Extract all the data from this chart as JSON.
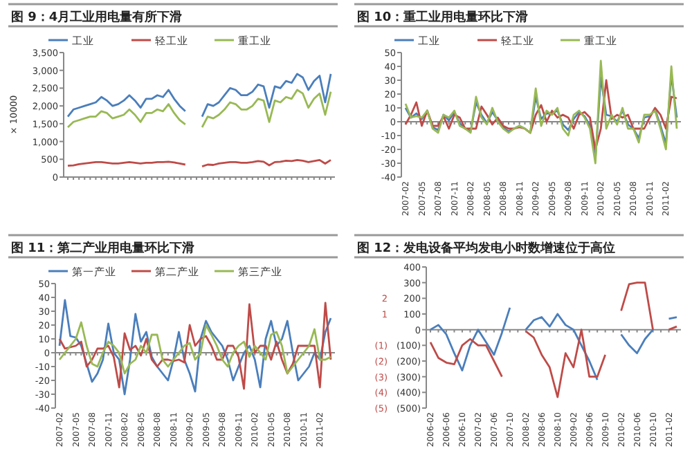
{
  "chart_data": [
    {
      "type": "line",
      "title": "图 9：4月工业用电量有所下滑",
      "ylabel": "× 10000",
      "legend": "top",
      "categories": [
        null,
        null,
        null,
        null,
        null,
        null,
        null,
        null,
        null,
        null,
        null,
        null,
        null,
        null,
        null,
        null,
        null,
        null,
        null,
        null,
        null,
        null,
        null,
        null,
        null,
        null,
        null,
        null,
        null,
        null,
        null,
        null,
        null,
        null,
        null,
        null,
        null,
        null,
        null,
        null,
        null,
        null,
        null,
        null,
        null,
        null,
        null,
        null
      ],
      "ylim": [
        0,
        3500
      ],
      "yticks": [
        0,
        {
          "value": 500,
          "label": "500"
        },
        {
          "value": 1000,
          "label": "1,000"
        },
        {
          "value": 1500,
          "label": "1,500"
        },
        {
          "value": 2000,
          "label": "2,000"
        },
        {
          "value": 2500,
          "label": "2,500"
        },
        {
          "value": 3000,
          "label": "3,000"
        },
        {
          "value": 3500,
          "label": "3,500"
        }
      ],
      "series": [
        {
          "name": "工业",
          "color": "#4a7ebb",
          "values": [
            1700,
            1900,
            1950,
            2000,
            2050,
            2100,
            2250,
            2150,
            2000,
            2050,
            2150,
            2300,
            2150,
            1950,
            2200,
            2200,
            2300,
            2250,
            2450,
            2200,
            2000,
            1850,
            null,
            null,
            1700,
            2050,
            2000,
            2100,
            2300,
            2500,
            2450,
            2300,
            2300,
            2400,
            2600,
            2550,
            1950,
            2550,
            2500,
            2700,
            2650,
            2900,
            2800,
            2450,
            2700,
            2850,
            2100,
            2900
          ]
        },
        {
          "name": "轻工业",
          "color": "#be4b48",
          "values": [
            320,
            330,
            360,
            380,
            400,
            420,
            420,
            400,
            380,
            380,
            400,
            420,
            400,
            380,
            400,
            400,
            420,
            420,
            430,
            410,
            380,
            350,
            null,
            null,
            300,
            350,
            340,
            380,
            400,
            420,
            420,
            400,
            400,
            420,
            450,
            430,
            330,
            420,
            430,
            460,
            450,
            480,
            460,
            420,
            450,
            480,
            380,
            480
          ]
        },
        {
          "name": "重工业",
          "color": "#98b954",
          "values": [
            1400,
            1550,
            1600,
            1650,
            1700,
            1700,
            1850,
            1800,
            1650,
            1700,
            1750,
            1900,
            1750,
            1550,
            1800,
            1800,
            1900,
            1850,
            2050,
            1800,
            1600,
            1480,
            null,
            null,
            1400,
            1700,
            1650,
            1750,
            1900,
            2100,
            2050,
            1900,
            1900,
            2000,
            2200,
            2150,
            1550,
            2150,
            2100,
            2250,
            2200,
            2450,
            2350,
            1950,
            2200,
            2350,
            1750,
            2400
          ]
        }
      ]
    },
    {
      "type": "line",
      "title": "图 10：重工业用电量环比下滑",
      "legend": "top",
      "categories": [
        "2007-02",
        null,
        null,
        "2007-05",
        null,
        null,
        "2007-08",
        null,
        null,
        "2007-11",
        null,
        null,
        "2008-02",
        null,
        null,
        "2008-05",
        null,
        null,
        "2008-08",
        null,
        null,
        "2008-11",
        null,
        null,
        "2009-02",
        null,
        null,
        "2009-05",
        null,
        null,
        "2009-08",
        null,
        null,
        "2009-11",
        null,
        null,
        "2010-02",
        null,
        null,
        "2010-05",
        null,
        null,
        "2010-08",
        null,
        null,
        "2010-11",
        null,
        null,
        "2011-02",
        null,
        null
      ],
      "ylim": [
        -40,
        50
      ],
      "yticks": [
        -40,
        -30,
        -20,
        -10,
        0,
        10,
        20,
        30,
        40,
        50
      ],
      "series": [
        {
          "name": "工业",
          "color": "#4a7ebb",
          "values": [
            10,
            3,
            6,
            2,
            8,
            -4,
            -6,
            5,
            1,
            7,
            -1,
            -5,
            -7,
            14,
            5,
            -1,
            7,
            1,
            -4,
            -7,
            -5,
            -3,
            -5,
            -8,
            18,
            2,
            6,
            6,
            8,
            -2,
            -6,
            2,
            7,
            4,
            -3,
            -27,
            32,
            5,
            4,
            0,
            8,
            -2,
            -5,
            -12,
            3,
            4,
            9,
            -3,
            -16,
            34,
            3
          ]
        },
        {
          "name": "轻工业",
          "color": "#be4b48",
          "values": [
            -2,
            5,
            14,
            -3,
            8,
            -3,
            -3,
            4,
            -5,
            5,
            3,
            -5,
            -5,
            -5,
            11,
            5,
            -2,
            3,
            -3,
            -5,
            -5,
            -4,
            -5,
            -8,
            5,
            12,
            0,
            8,
            3,
            5,
            3,
            -5,
            5,
            7,
            3,
            -20,
            -5,
            30,
            2,
            5,
            3,
            5,
            -5,
            -5,
            -5,
            3,
            10,
            5,
            -5,
            18,
            17
          ]
        },
        {
          "name": "重工业",
          "color": "#98b954",
          "values": [
            13,
            3,
            4,
            3,
            8,
            -5,
            -8,
            5,
            3,
            8,
            -3,
            -5,
            -8,
            18,
            3,
            -2,
            10,
            0,
            -5,
            -8,
            -5,
            -3,
            -5,
            -8,
            24,
            -3,
            8,
            5,
            10,
            -5,
            -10,
            5,
            8,
            3,
            -5,
            -30,
            44,
            -5,
            5,
            -2,
            10,
            -5,
            -5,
            -15,
            5,
            5,
            8,
            -5,
            -20,
            40,
            -5
          ]
        }
      ]
    },
    {
      "type": "line",
      "title": "图 11：第二产业用电量环比下滑",
      "legend": "top",
      "categories": [
        "2007-02",
        null,
        null,
        "2007-05",
        null,
        null,
        "2007-08",
        null,
        null,
        "2007-11",
        null,
        null,
        "2008-02",
        null,
        null,
        "2008-05",
        null,
        null,
        "2008-08",
        null,
        null,
        "2008-11",
        null,
        null,
        "2009-02",
        null,
        null,
        "2009-05",
        null,
        null,
        "2009-08",
        null,
        null,
        "2009-11",
        null,
        null,
        "2010-02",
        null,
        null,
        "2010-05",
        null,
        null,
        "2010-08",
        null,
        null,
        "2010-11",
        null,
        null,
        "2011-02",
        null,
        null
      ],
      "ylim": [
        -40,
        50
      ],
      "yticks": [
        -40,
        -30,
        -20,
        -10,
        0,
        10,
        20,
        30,
        40,
        50
      ],
      "series": [
        {
          "name": "第一产业",
          "color": "#4a7ebb",
          "values": [
            5,
            38,
            12,
            11,
            5,
            -8,
            -21,
            -15,
            -5,
            21,
            0,
            -5,
            -30,
            -5,
            28,
            8,
            15,
            -3,
            -10,
            -15,
            -20,
            -5,
            15,
            -5,
            -15,
            -28,
            10,
            23,
            15,
            10,
            5,
            -5,
            -20,
            -10,
            0,
            5,
            -5,
            -25,
            10,
            23,
            5,
            10,
            23,
            0,
            -20,
            -15,
            -10,
            0,
            -5,
            15,
            25
          ]
        },
        {
          "name": "第二产业",
          "color": "#be4b48",
          "values": [
            10,
            3,
            4,
            5,
            8,
            -10,
            -5,
            3,
            3,
            5,
            -3,
            -25,
            14,
            2,
            5,
            -2,
            10,
            -5,
            -10,
            -5,
            -5,
            -6,
            -5,
            -7,
            20,
            5,
            10,
            12,
            5,
            -5,
            -5,
            5,
            5,
            -3,
            -26,
            35,
            0,
            5,
            5,
            -5,
            8,
            -5,
            -15,
            -8,
            5,
            5,
            5,
            5,
            -25,
            36,
            -5
          ]
        },
        {
          "name": "第三产业",
          "color": "#98b954",
          "values": [
            -5,
            0,
            5,
            10,
            22,
            5,
            -8,
            -10,
            0,
            8,
            5,
            0,
            -15,
            -8,
            -5,
            5,
            0,
            13,
            13,
            -5,
            -10,
            -5,
            0,
            5,
            7,
            -5,
            0,
            20,
            13,
            5,
            -5,
            -10,
            0,
            5,
            8,
            -3,
            5,
            0,
            -5,
            13,
            15,
            5,
            -15,
            -10,
            -5,
            0,
            5,
            17,
            -5,
            -5,
            -3
          ]
        }
      ]
    },
    {
      "type": "line",
      "title": "图 12：发电设备平均发电小时数增速位于高位",
      "categories": [
        "2006-02",
        null,
        "2006-06",
        null,
        "2006-10",
        null,
        "2007-02",
        null,
        "2007-06",
        null,
        "2007-10",
        null,
        "2008-02",
        null,
        "2008-06",
        null,
        "2008-10",
        null,
        "2009-02",
        null,
        "2009-06",
        null,
        "2009-10",
        null,
        "2010-02",
        null,
        "2010-06",
        null,
        "2010-10",
        null,
        "2011-02",
        null
      ],
      "ylim": [
        -500,
        400
      ],
      "yticks": [
        {
          "value": -500,
          "label": "(500)"
        },
        {
          "value": -400,
          "label": "(400)"
        },
        {
          "value": -300,
          "label": "(300)"
        },
        {
          "value": -200,
          "label": "(200)"
        },
        {
          "value": -100,
          "label": "(100)"
        },
        0,
        100,
        200,
        300,
        400
      ],
      "y2lim": [
        -5,
        4
      ],
      "y2ticks": [
        {
          "value": -5,
          "label": "(5)"
        },
        {
          "value": -4,
          "label": "(4)"
        },
        {
          "value": -3,
          "label": "(3)"
        },
        {
          "value": -2,
          "label": "(2)"
        },
        {
          "value": -1,
          "label": "(1)"
        },
        1,
        2
      ],
      "series": [
        {
          "color": "#4a7ebb",
          "values": [
            0,
            30,
            -30,
            -150,
            -260,
            -100,
            0,
            -80,
            -160,
            -20,
            140,
            null,
            0,
            60,
            80,
            20,
            100,
            30,
            0,
            -100,
            -200,
            -320,
            null,
            null,
            -30,
            -100,
            -150,
            -60,
            0,
            null,
            70,
            80
          ]
        },
        {
          "color": "#be4b48",
          "axis": "y2",
          "values": [
            -0.8,
            -1.8,
            -2.1,
            -2.2,
            -1,
            -0.6,
            -1,
            -1,
            -2,
            -3,
            null,
            null,
            -0.1,
            -0.5,
            -1.6,
            -2.4,
            -4.3,
            -1.5,
            -2.4,
            0,
            -3,
            -3,
            -1.6,
            null,
            1.2,
            2.9,
            3.0,
            3.0,
            0,
            null,
            0,
            0.2
          ]
        }
      ]
    }
  ]
}
